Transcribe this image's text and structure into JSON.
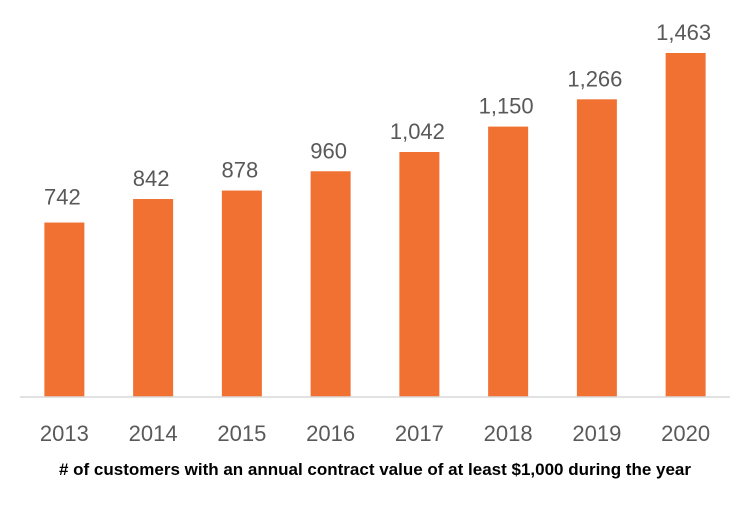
{
  "chart_data": {
    "type": "bar",
    "title": "",
    "xlabel": "",
    "ylabel": "",
    "categories": [
      "2013",
      "2014",
      "2015",
      "2016",
      "2017",
      "2018",
      "2019",
      "2020"
    ],
    "values": [
      742,
      842,
      878,
      960,
      1042,
      1150,
      1266,
      1463
    ],
    "value_labels": [
      "742",
      "842",
      "878",
      "960",
      "1,042",
      "1,150",
      "1,266",
      "1,463"
    ],
    "ylim": [
      0,
      1600
    ],
    "grid": false,
    "legend": "none",
    "bar_color": "#F07132",
    "axis_color": "#D9D9D9",
    "label_color": "#595959"
  },
  "caption": "# of customers with an annual contract value of at least $1,000 during the year"
}
